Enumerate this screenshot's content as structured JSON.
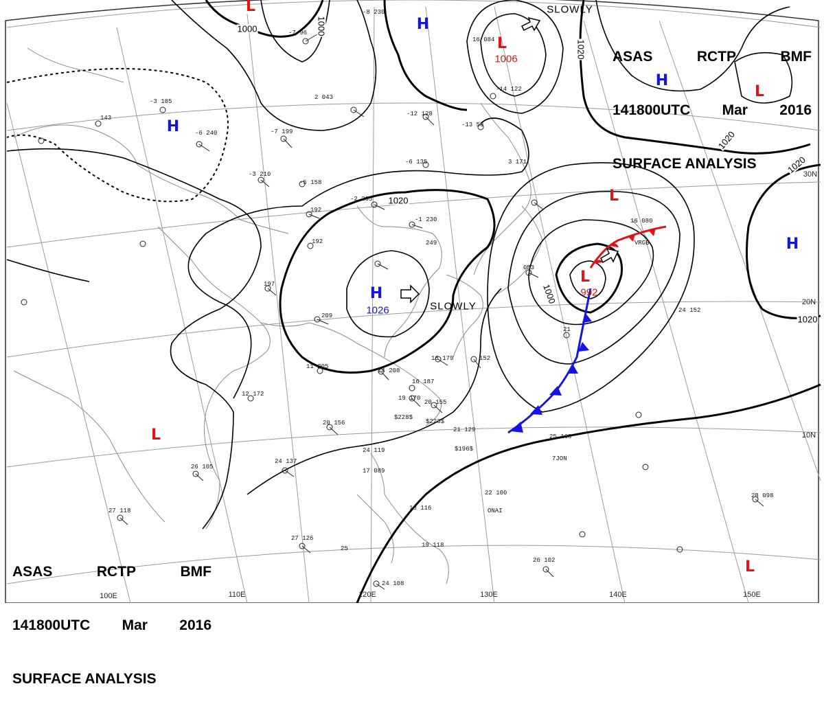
{
  "header": {
    "agency": "ASAS",
    "center": "RCTP",
    "office": "BMF",
    "time": "141800UTC",
    "month": "Mar",
    "year": "2016",
    "product": "SURFACE ANALYSIS"
  },
  "colors": {
    "high": "#1414e6",
    "low": "#e01414",
    "front_cold": "#1414e6",
    "front_occluded": "#e01414",
    "isobar": "#000000",
    "coast": "#888888",
    "grid": "#9a9a9a"
  },
  "systems": {
    "high_main": {
      "type": "H",
      "pressure": "1026",
      "movement": "SLOWLY"
    },
    "low_main": {
      "type": "L",
      "pressure": "992"
    },
    "low_north": {
      "type": "L",
      "pressure": "1006",
      "movement": "SLOWLY"
    },
    "high_nw": {
      "type": "H"
    },
    "high_north": {
      "type": "H"
    },
    "high_ne": {
      "type": "H"
    },
    "high_east": {
      "type": "H"
    },
    "low_top": {
      "type": "L"
    },
    "low_ne": {
      "type": "L"
    },
    "low_center_north": {
      "type": "L"
    },
    "low_sw": {
      "type": "L"
    },
    "low_se": {
      "type": "L"
    }
  },
  "isobar_labels": {
    "a": "1000",
    "b": "1000",
    "c": "1020",
    "d": "1020",
    "e": "1020",
    "f": "1020",
    "g": "1000",
    "h": "1020"
  },
  "lat_labels": {
    "n30": "30N",
    "n20": "20N",
    "n10": "10N"
  },
  "lon_labels": {
    "e100": "100E",
    "e110": "110E",
    "e120": "120E",
    "e130": "130E",
    "e140": "140E",
    "e150": "150E"
  },
  "stations": {
    "s01": "-7  96",
    "s02": "-6  240",
    "s03": "143",
    "s04": "-3  185",
    "s05": "-7  199",
    "s06": "2  043",
    "s07": "-12  128",
    "s08": "-13  58",
    "s09": "-14  122",
    "s10": "-6  135",
    "s11": "-3  210",
    "s12": "-5  158",
    "s13": "192",
    "s14": "-2  205",
    "s15": "192",
    "s16": "-1  230",
    "s17": "249",
    "s18": "197",
    "s19": "209",
    "s20": "11  205",
    "s21": "14  208",
    "s22": "16  179",
    "s23": "16  187",
    "s24": "19  170",
    "s25": "20  155",
    "s26": "21  129",
    "s27": "152",
    "s28": "12  172",
    "s29": "20  156",
    "s30": "24  137",
    "s31": "26  105",
    "s32": "27  118",
    "s33": "27  126",
    "s34": "25",
    "s35": "24  108",
    "s36": "25  168",
    "s37": "22  100",
    "s38": "26  102",
    "s39": "28  098",
    "s40": "24  152",
    "s41": "21",
    "s42": "16  080",
    "s43": "053",
    "s44": "16  084",
    "s45": "24  119",
    "s46": "17  089",
    "s47": "18  116",
    "s48": "19  118",
    "s49": "-8  230",
    "s50": "3  171",
    "s51": "$196$",
    "s52": "$228$",
    "s53": "$223$",
    "s54": "7JON",
    "s55": "ONAI",
    "s56": "VRGB"
  }
}
